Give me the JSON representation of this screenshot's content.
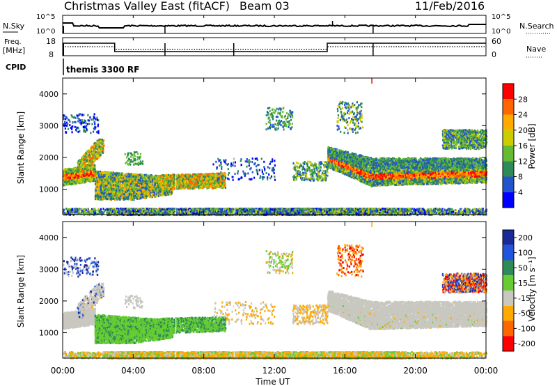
{
  "header": {
    "station": "Christmas Valley East (fitACF)",
    "beam": "Beam 03",
    "date": "11/Feb/2016"
  },
  "noise_panel": {
    "left_label": "N.Sky",
    "left_ticks": [
      "10^5",
      "10^0"
    ],
    "right_label": "N.Search",
    "right_ticks": [
      "10^5",
      "10^0"
    ]
  },
  "freq_panel": {
    "left_label_1": "Freq.",
    "left_label_2": "[MHz]",
    "left_ticks": [
      "18",
      "8"
    ],
    "right_label": "Nave",
    "right_ticks": [
      "60",
      "0"
    ],
    "cpid_label": "CPID",
    "cpid_value": "themis 3300 RF"
  },
  "chart_data": [
    {
      "type": "heatmap",
      "name": "power",
      "ylabel": "Slant Range [km]",
      "xlabel": "",
      "ylim": [
        200,
        4500
      ],
      "yticks": [
        "1000",
        "2000",
        "3000",
        "4000"
      ],
      "colorbar_label": "Power [dB]",
      "colorbar_ticks": [
        "4",
        "8",
        "12",
        "16",
        "20",
        "24",
        "28"
      ],
      "colors": [
        "#0000ff",
        "#2255cc",
        "#2e8b57",
        "#66bb33",
        "#cccc00",
        "#ffaa00",
        "#ff6600",
        "#ff0000"
      ]
    },
    {
      "type": "heatmap",
      "name": "velocity",
      "ylabel": "Slant Range [km]",
      "xlabel": "Time UT",
      "ylim": [
        200,
        4500
      ],
      "yticks": [
        "1000",
        "2000",
        "3000",
        "4000"
      ],
      "xticks": [
        "00:00",
        "04:00",
        "08:00",
        "12:00",
        "16:00",
        "20:00",
        "00:00"
      ],
      "colorbar_label": "Velocity [m s⁻¹]",
      "colorbar_ticks": [
        "200",
        "100",
        "50",
        "15",
        "-15",
        "-50",
        "-100",
        "-200"
      ],
      "colors": [
        "#1a2a99",
        "#2255dd",
        "#2e8b57",
        "#66cc33",
        "#c8c8c0",
        "#ffaa00",
        "#ff6600",
        "#ff0000"
      ]
    }
  ]
}
